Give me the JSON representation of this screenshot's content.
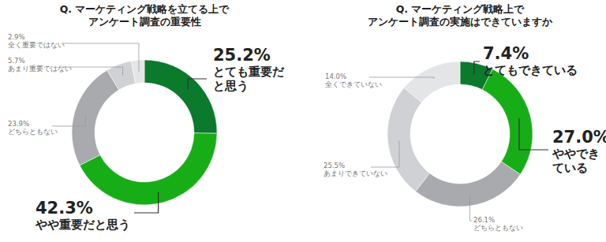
{
  "chart_data": [
    {
      "type": "donut",
      "title": "Q. マーケティング戦略を立てる上で\nアンケート調査の重要性",
      "categories": [
        "とても重要だと思う",
        "やや重要だと思う",
        "どちらともない",
        "あまり重要ではない",
        "全く重要ではない"
      ],
      "values": [
        25.2,
        42.3,
        23.9,
        5.7,
        2.9
      ],
      "value_labels": [
        "25.2%",
        "42.3%",
        "23.9%",
        "5.7%",
        "2.9%"
      ],
      "colors": [
        "#0b7a2c",
        "#17ad17",
        "#a8aaae",
        "#cfd1d4",
        "#e4e5e7"
      ],
      "data_labels": true
    },
    {
      "type": "donut",
      "title": "Q. マーケティング戦略上で\nアンケート調査の実施はできていますか",
      "categories": [
        "とてもできている",
        "ややできている",
        "どちらともない",
        "あまりできていない",
        "全くできていない"
      ],
      "values": [
        7.4,
        27.0,
        26.1,
        25.5,
        14.0
      ],
      "value_labels": [
        "7.4%",
        "27.0%",
        "26.1%",
        "25.5%",
        "14.0%"
      ],
      "colors": [
        "#0b7a2c",
        "#17ad17",
        "#a8aaae",
        "#cfd1d4",
        "#e4e5e7"
      ],
      "data_labels": true
    }
  ]
}
